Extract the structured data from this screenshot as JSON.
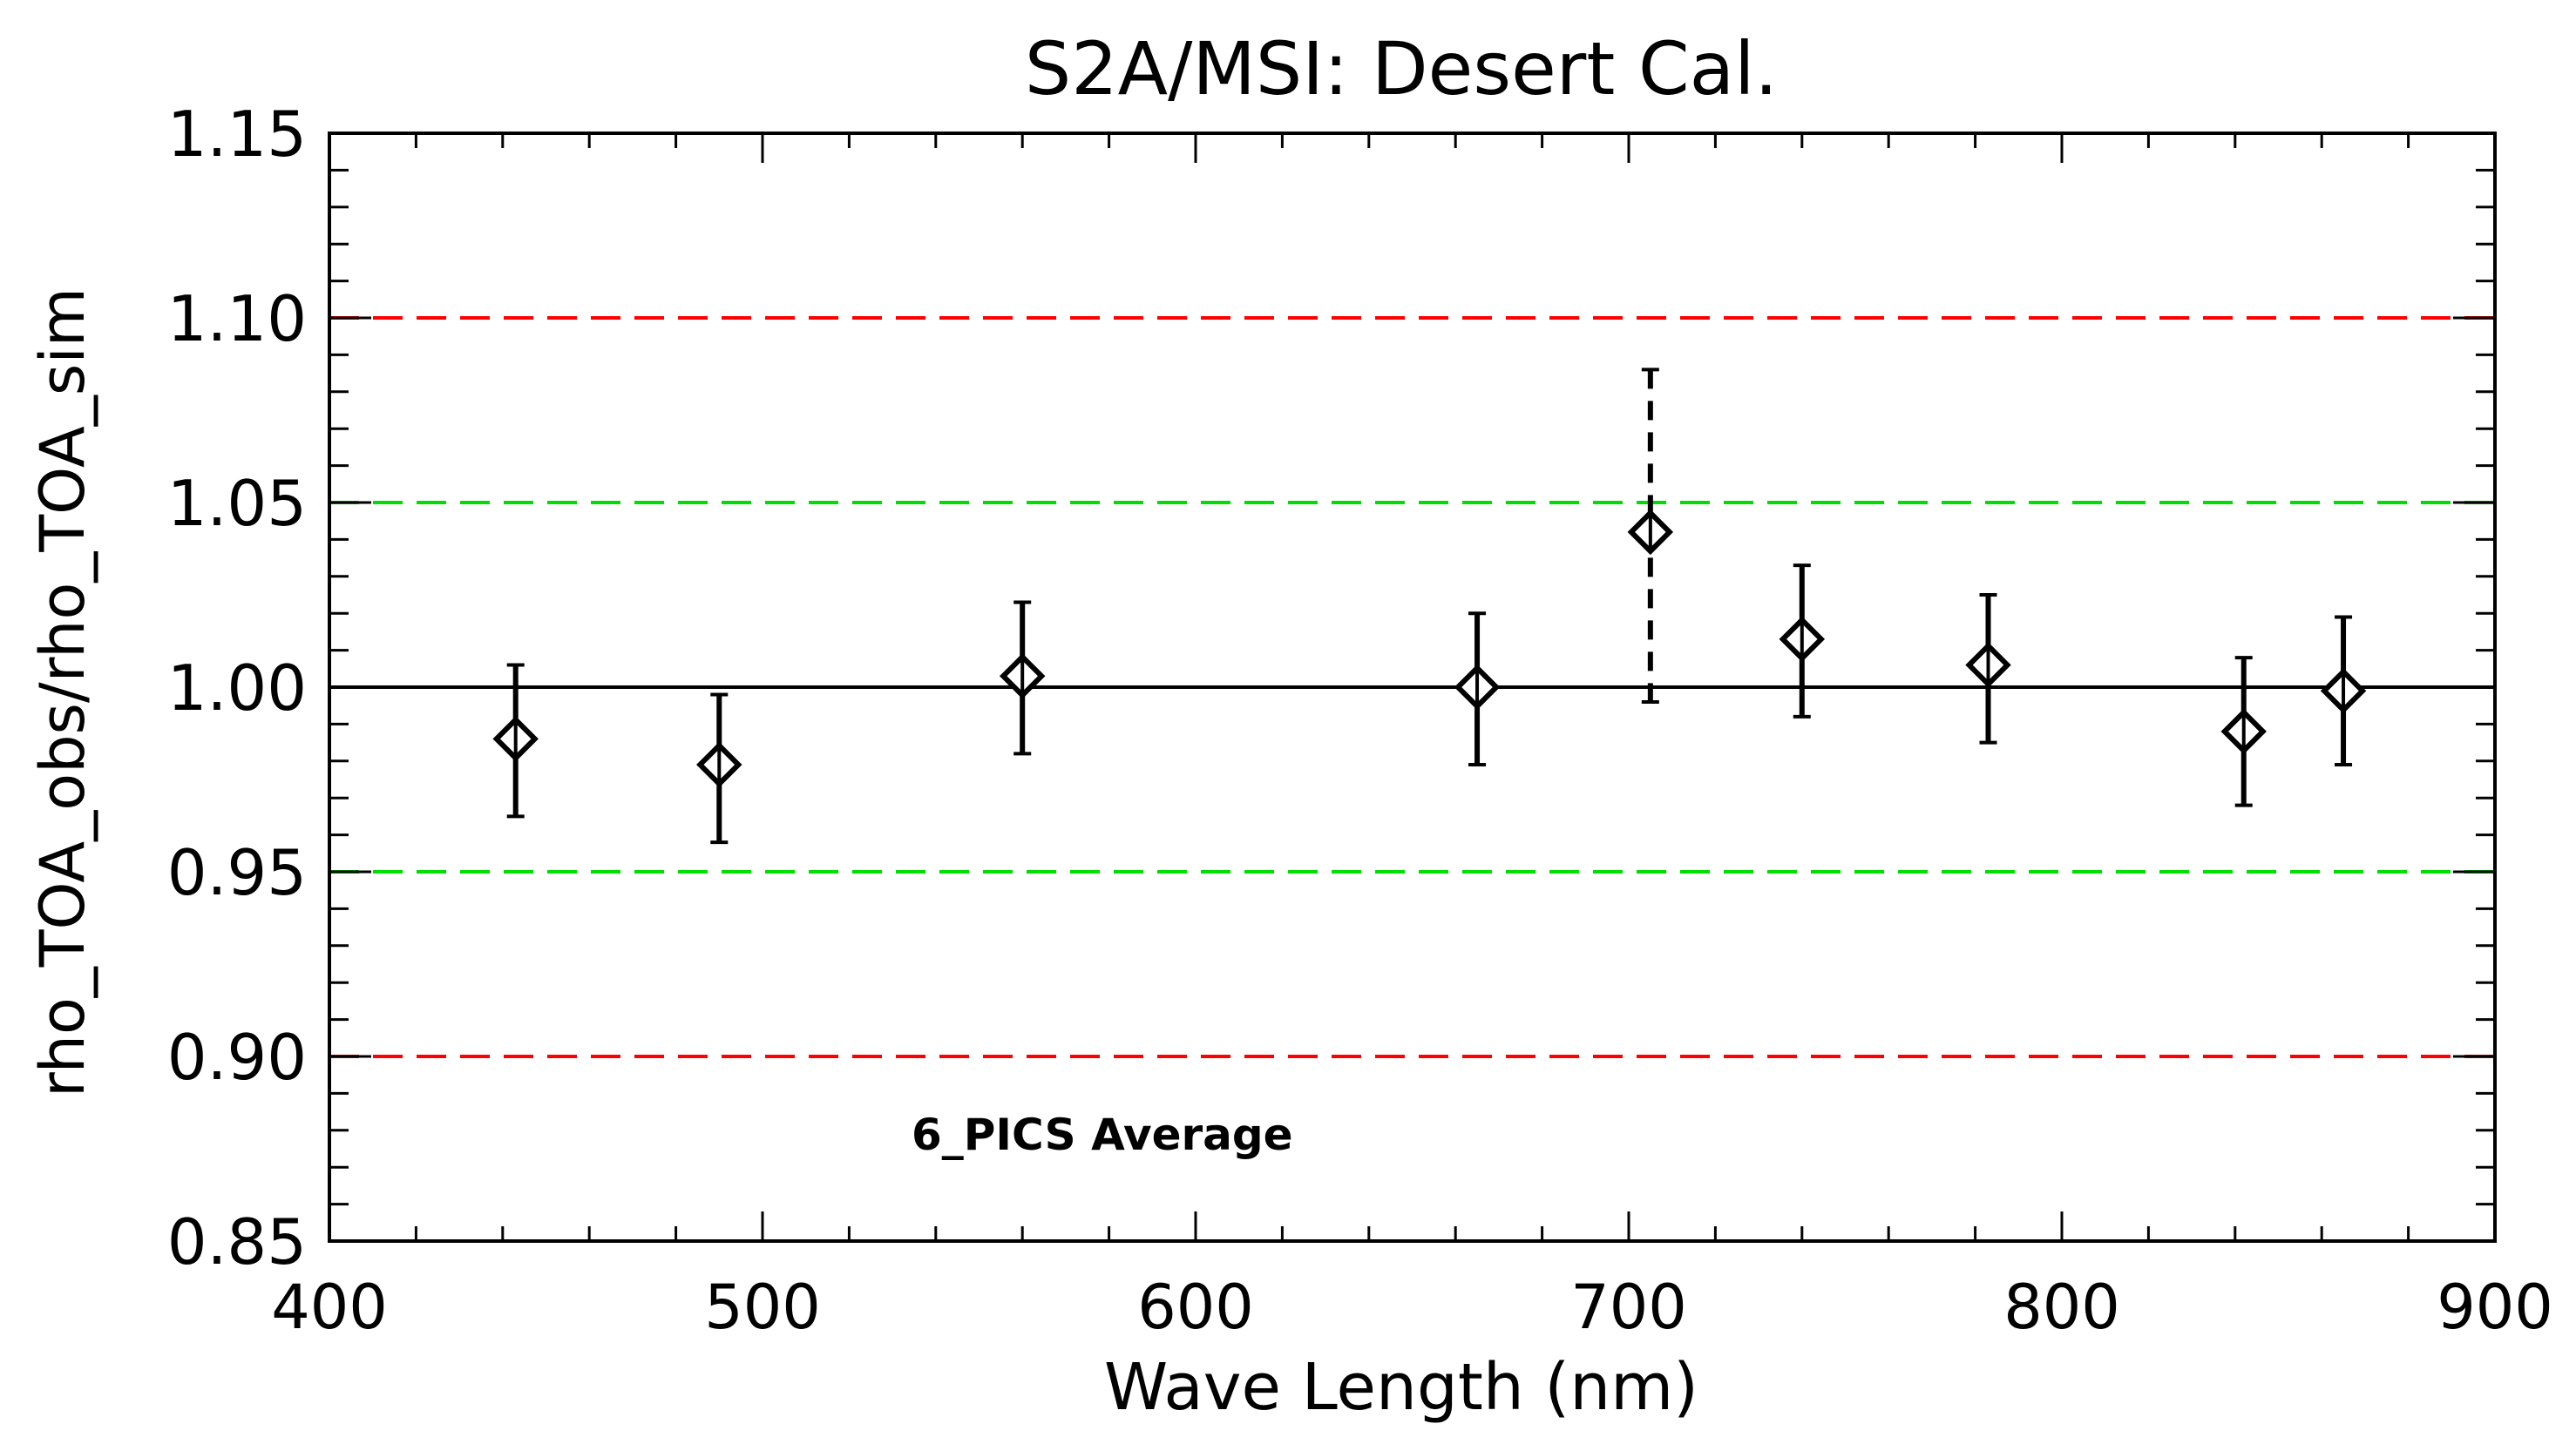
{
  "chart_data": {
    "type": "scatter",
    "title": "S2A/MSI: Desert Cal.",
    "xlabel": "Wave Length (nm)",
    "ylabel": "rho_TOA_obs/rho_TOA_sim",
    "xlim": [
      400,
      900
    ],
    "ylim": [
      0.85,
      1.15
    ],
    "xticks": [
      "400",
      "500",
      "600",
      "700",
      "800",
      "900"
    ],
    "yticks": [
      "0.85",
      "0.90",
      "0.95",
      "1.00",
      "1.05",
      "1.10",
      "1.15"
    ],
    "annotation": "6_PICS Average",
    "reference_lines": [
      {
        "y": 1.1,
        "color": "#ff0000",
        "style": "dashed"
      },
      {
        "y": 1.05,
        "color": "#00dd00",
        "style": "dashed"
      },
      {
        "y": 1.0,
        "color": "#000000",
        "style": "solid"
      },
      {
        "y": 0.95,
        "color": "#00dd00",
        "style": "dashed"
      },
      {
        "y": 0.9,
        "color": "#ff0000",
        "style": "dashed"
      }
    ],
    "series": [
      {
        "name": "6_PICS Average",
        "marker": "diamond",
        "points": [
          {
            "x": 443,
            "y": 0.986,
            "err_low": 0.965,
            "err_high": 1.006,
            "dashed": false
          },
          {
            "x": 490,
            "y": 0.979,
            "err_low": 0.958,
            "err_high": 0.998,
            "dashed": false
          },
          {
            "x": 560,
            "y": 1.003,
            "err_low": 0.982,
            "err_high": 1.023,
            "dashed": false
          },
          {
            "x": 665,
            "y": 1.0,
            "err_low": 0.979,
            "err_high": 1.02,
            "dashed": false
          },
          {
            "x": 705,
            "y": 1.042,
            "err_low": 0.996,
            "err_high": 1.086,
            "dashed": true
          },
          {
            "x": 740,
            "y": 1.013,
            "err_low": 0.992,
            "err_high": 1.033,
            "dashed": false
          },
          {
            "x": 783,
            "y": 1.006,
            "err_low": 0.985,
            "err_high": 1.025,
            "dashed": false
          },
          {
            "x": 842,
            "y": 0.988,
            "err_low": 0.968,
            "err_high": 1.008,
            "dashed": false
          },
          {
            "x": 865,
            "y": 0.999,
            "err_low": 0.979,
            "err_high": 1.019,
            "dashed": false
          }
        ]
      }
    ]
  }
}
